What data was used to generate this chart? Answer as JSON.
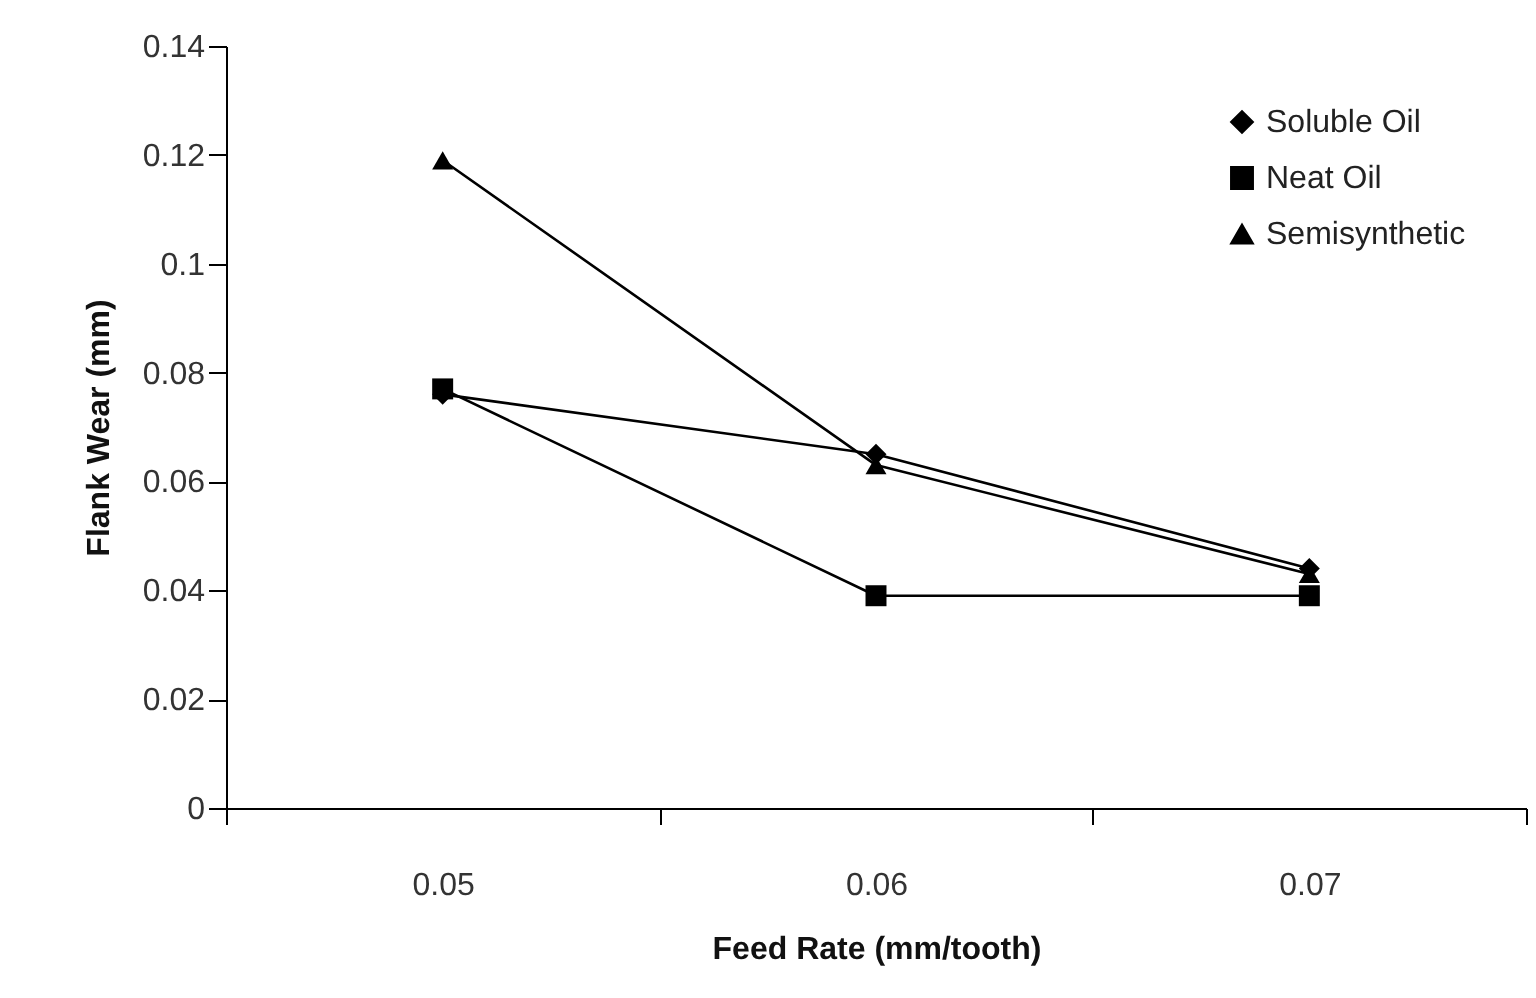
{
  "chart_data": {
    "type": "line",
    "xlabel": "Feed Rate (mm/tooth)",
    "ylabel": "Flank Wear (mm)",
    "categories": [
      "0.05",
      "0.06",
      "0.07"
    ],
    "series": [
      {
        "name": "Soluble Oil",
        "color": "#000000",
        "marker": "diamond",
        "values": [
          0.076,
          0.065,
          0.044
        ]
      },
      {
        "name": "Neat Oil",
        "color": "#000000",
        "marker": "square",
        "values": [
          0.077,
          0.039,
          0.039
        ]
      },
      {
        "name": "Semisynthetic",
        "color": "#000000",
        "marker": "triangle",
        "values": [
          0.119,
          0.063,
          0.043
        ]
      }
    ],
    "ylim": [
      0,
      0.14
    ],
    "yticks": [
      0,
      0.02,
      0.04,
      0.06,
      0.08,
      0.1,
      0.12,
      0.14
    ],
    "grid": false,
    "legend": "top right",
    "line_style": "solid"
  }
}
